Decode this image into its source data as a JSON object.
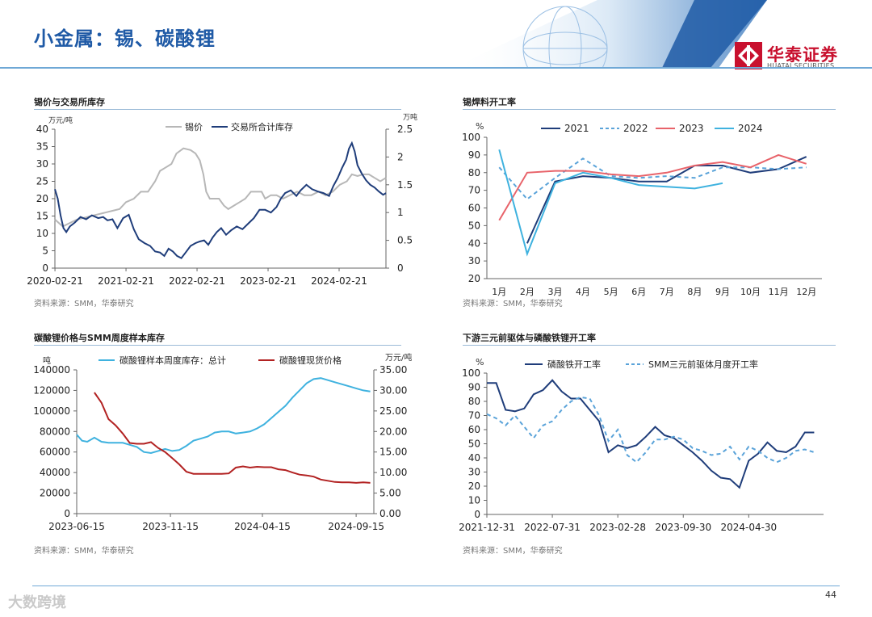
{
  "header": {
    "title": "小金属：锡、碳酸锂"
  },
  "logo": {
    "name_cn": "华泰证券",
    "name_en": "HUATAI SECURITIES"
  },
  "footer": {
    "page": "44",
    "watermark": "大数跨境"
  },
  "colors": {
    "brand_red": "#c8102e",
    "title_blue": "#1f5aa6"
  },
  "panels": [
    {
      "title": "锡价与交易所库存",
      "source": "资料来源：SMM，华泰研究"
    },
    {
      "title": "锡焊料开工率",
      "source": "资料来源：SMM，华泰研究"
    },
    {
      "title": "碳酸锂价格与SMM周度样本库存",
      "source": "资料来源：SMM，华泰研究"
    },
    {
      "title": "下游三元前驱体与磷酸铁锂开工率",
      "source": "资料来源：SMM，华泰研究"
    }
  ],
  "chart_data": [
    {
      "type": "line",
      "left_unit": "万元/吨",
      "right_unit": "万吨",
      "ylim": [
        0,
        40
      ],
      "y2lim": [
        0,
        2.5
      ],
      "yticks": [
        "0",
        "5",
        "10",
        "15",
        "20",
        "25",
        "30",
        "35",
        "40"
      ],
      "y2ticks": [
        "0",
        "0.5",
        "1",
        "1.5",
        "2",
        "2.5"
      ],
      "xticks": [
        "2020-02-21",
        "2021-02-21",
        "2022-02-21",
        "2023-02-21",
        "2024-02-21"
      ],
      "xrange": [
        2020.14,
        2024.8
      ],
      "legend_position": "top",
      "series": [
        {
          "name": "锡价",
          "axis": "left",
          "color": "#b7b7b7",
          "x": [
            2020.14,
            2020.25,
            2020.35,
            2020.45,
            2020.55,
            2020.65,
            2020.75,
            2020.85,
            2020.95,
            2021.05,
            2021.14,
            2021.25,
            2021.35,
            2021.45,
            2021.55,
            2021.62,
            2021.7,
            2021.78,
            2021.85,
            2021.95,
            2022.05,
            2022.12,
            2022.18,
            2022.23,
            2022.27,
            2022.32,
            2022.38,
            2022.45,
            2022.52,
            2022.58,
            2022.66,
            2022.74,
            2022.82,
            2022.9,
            2022.98,
            2023.05,
            2023.1,
            2023.18,
            2023.26,
            2023.35,
            2023.45,
            2023.55,
            2023.65,
            2023.75,
            2023.85,
            2023.95,
            2024.05,
            2024.15,
            2024.25,
            2024.32,
            2024.4,
            2024.48,
            2024.56,
            2024.64,
            2024.72,
            2024.8
          ],
          "y": [
            14,
            12,
            13,
            14,
            14.5,
            15,
            15.5,
            16,
            16.5,
            17,
            19,
            20,
            22,
            22,
            25,
            28,
            29,
            30,
            33,
            34.5,
            34,
            33,
            31,
            27,
            22,
            20,
            20,
            20,
            18,
            17,
            18,
            19,
            20,
            22,
            22,
            22,
            20,
            21,
            21,
            20,
            21,
            22,
            21,
            21,
            22,
            21,
            22,
            24,
            25,
            27,
            26.5,
            27,
            27,
            26,
            25,
            26
          ]
        },
        {
          "name": "交易所合计库存",
          "axis": "right",
          "color": "#1f3d7a",
          "x": [
            2020.14,
            2020.18,
            2020.22,
            2020.26,
            2020.3,
            2020.35,
            2020.42,
            2020.5,
            2020.58,
            2020.66,
            2020.75,
            2020.82,
            2020.88,
            2020.95,
            2021.02,
            2021.1,
            2021.18,
            2021.25,
            2021.32,
            2021.4,
            2021.48,
            2021.55,
            2021.62,
            2021.68,
            2021.74,
            2021.8,
            2021.86,
            2021.92,
            2021.98,
            2022.05,
            2022.12,
            2022.18,
            2022.24,
            2022.3,
            2022.36,
            2022.42,
            2022.48,
            2022.55,
            2022.62,
            2022.7,
            2022.78,
            2022.86,
            2022.94,
            2023.02,
            2023.1,
            2023.18,
            2023.26,
            2023.32,
            2023.38,
            2023.46,
            2023.54,
            2023.6,
            2023.68,
            2023.76,
            2023.84,
            2023.92,
            2024.0,
            2024.06,
            2024.12,
            2024.18,
            2024.24,
            2024.28,
            2024.32,
            2024.36,
            2024.4,
            2024.46,
            2024.52,
            2024.58,
            2024.64,
            2024.7,
            2024.76,
            2024.8
          ],
          "y": [
            1.42,
            1.25,
            0.95,
            0.72,
            0.65,
            0.75,
            0.82,
            0.92,
            0.88,
            0.95,
            0.9,
            0.92,
            0.86,
            0.88,
            0.72,
            0.9,
            0.96,
            0.7,
            0.52,
            0.45,
            0.4,
            0.3,
            0.28,
            0.22,
            0.35,
            0.3,
            0.22,
            0.18,
            0.28,
            0.4,
            0.45,
            0.48,
            0.5,
            0.42,
            0.55,
            0.65,
            0.72,
            0.6,
            0.68,
            0.75,
            0.7,
            0.8,
            0.9,
            1.05,
            1.05,
            1.0,
            1.1,
            1.25,
            1.35,
            1.4,
            1.3,
            1.4,
            1.5,
            1.42,
            1.38,
            1.35,
            1.3,
            1.48,
            1.62,
            1.8,
            1.95,
            2.15,
            2.25,
            2.1,
            1.85,
            1.7,
            1.58,
            1.5,
            1.45,
            1.38,
            1.32,
            1.35
          ]
        }
      ]
    },
    {
      "type": "line",
      "left_unit": "%",
      "ylim": [
        20,
        100
      ],
      "yticks": [
        "20",
        "30",
        "40",
        "50",
        "60",
        "70",
        "80",
        "90",
        "100"
      ],
      "categories": [
        "1月",
        "2月",
        "3月",
        "4月",
        "5月",
        "6月",
        "7月",
        "8月",
        "9月",
        "10月",
        "11月",
        "12月"
      ],
      "legend_position": "top",
      "series": [
        {
          "name": "2021",
          "color": "#1f3d7a",
          "dash": false,
          "values": [
            null,
            40,
            75,
            78,
            77,
            75,
            75,
            84,
            84,
            80,
            82,
            89
          ]
        },
        {
          "name": "2022",
          "color": "#5aa3d9",
          "dash": true,
          "values": [
            83,
            65,
            77,
            88,
            78,
            77,
            78,
            77,
            83,
            83,
            82,
            83
          ]
        },
        {
          "name": "2023",
          "color": "#e8636a",
          "dash": false,
          "values": [
            53,
            80,
            81,
            81,
            79,
            78,
            80,
            84,
            86,
            83,
            90,
            85
          ]
        },
        {
          "name": "2024",
          "color": "#3fb2df",
          "dash": false,
          "values": [
            93,
            34,
            74,
            80,
            77,
            73,
            72,
            71,
            74,
            null,
            null,
            null
          ]
        }
      ]
    },
    {
      "type": "line",
      "left_unit": "吨",
      "right_unit": "万元/吨",
      "ylim": [
        0,
        140000
      ],
      "y2lim": [
        0,
        35
      ],
      "yticks": [
        "0",
        "20000",
        "40000",
        "60000",
        "80000",
        "100000",
        "120000",
        "140000"
      ],
      "y2ticks": [
        "0.00",
        "5.00",
        "10.00",
        "15.00",
        "20.00",
        "25.00",
        "30.00",
        "35.00"
      ],
      "xticks": [
        "2023-06-15",
        "2023-11-15",
        "2024-04-15",
        "2024-09-15"
      ],
      "xrange": [
        0,
        16.8
      ],
      "legend_position": "top",
      "series": [
        {
          "name": "碳酸锂样本周度库存：总计",
          "axis": "left",
          "color": "#3fb2df",
          "x": [
            0,
            0.3,
            0.6,
            1.0,
            1.4,
            1.8,
            2.2,
            2.6,
            3.0,
            3.4,
            3.8,
            4.2,
            4.6,
            5.0,
            5.4,
            5.8,
            6.2,
            6.6,
            7.0,
            7.4,
            7.8,
            8.2,
            8.6,
            9.0,
            9.4,
            9.8,
            10.2,
            10.6,
            11.0,
            11.4,
            11.8,
            12.2,
            12.6,
            13.0,
            13.4,
            13.8,
            14.2,
            14.6,
            15.0,
            15.4,
            15.8,
            16.2,
            16.6
          ],
          "y": [
            77000,
            71000,
            70000,
            74000,
            70000,
            69000,
            69000,
            69000,
            67000,
            65000,
            60000,
            59000,
            61000,
            63000,
            61000,
            62000,
            66000,
            71000,
            73000,
            75000,
            79000,
            80000,
            80000,
            78000,
            79000,
            80000,
            83000,
            87000,
            93000,
            99000,
            105000,
            113000,
            120000,
            127000,
            131000,
            132000,
            130000,
            128000,
            126000,
            124000,
            122000,
            120000,
            119000
          ]
        },
        {
          "name": "碳酸锂现货价格",
          "axis": "right",
          "color": "#b22222",
          "x": [
            1.0,
            1.4,
            1.8,
            2.2,
            2.6,
            3.0,
            3.4,
            3.8,
            4.2,
            4.6,
            5.0,
            5.4,
            5.8,
            6.2,
            6.6,
            7.0,
            7.4,
            7.8,
            8.2,
            8.6,
            9.0,
            9.4,
            9.8,
            10.2,
            10.6,
            11.0,
            11.4,
            11.8,
            12.2,
            12.6,
            13.0,
            13.4,
            13.8,
            14.2,
            14.6,
            15.0,
            15.4,
            15.8,
            16.2,
            16.6
          ],
          "y": [
            29.5,
            27,
            23,
            21.5,
            19.5,
            17.2,
            17.0,
            17.0,
            17.4,
            16.0,
            15.0,
            13.5,
            12.0,
            10.2,
            9.7,
            9.7,
            9.7,
            9.7,
            9.7,
            9.8,
            11.2,
            11.5,
            11.2,
            11.4,
            11.3,
            11.3,
            10.8,
            10.6,
            10.0,
            9.5,
            9.3,
            9.0,
            8.3,
            8.0,
            7.7,
            7.6,
            7.6,
            7.5,
            7.6,
            7.5
          ]
        }
      ]
    },
    {
      "type": "line",
      "left_unit": "%",
      "ylim": [
        0,
        100
      ],
      "yticks": [
        "0",
        "10",
        "20",
        "30",
        "40",
        "50",
        "60",
        "70",
        "80",
        "90",
        "100"
      ],
      "xticks": [
        "2021-12-31",
        "2022-07-31",
        "2023-02-28",
        "2023-09-30",
        "2024-04-30"
      ],
      "xrange": [
        0,
        36
      ],
      "legend_position": "top",
      "series": [
        {
          "name": "磷酸铁开工率",
          "color": "#1f3d7a",
          "dash": false,
          "x": [
            0,
            1,
            2,
            3,
            4,
            5,
            6,
            7,
            8,
            9,
            10,
            11,
            12,
            13,
            14,
            15,
            16,
            17,
            18,
            19,
            20,
            21,
            22,
            23,
            24,
            25,
            26,
            27,
            28,
            29,
            30,
            31,
            32,
            33,
            34,
            35
          ],
          "y": [
            93,
            93,
            74,
            73,
            75,
            85,
            88,
            95,
            87,
            82,
            82,
            74,
            66,
            44,
            49,
            47,
            49,
            55,
            62,
            56,
            54,
            49,
            44,
            38,
            31,
            26,
            25,
            19,
            38,
            43,
            51,
            45,
            44,
            48,
            58,
            58
          ]
        },
        {
          "name": "SMM三元前驱体月度开工率",
          "color": "#5aa3d9",
          "dash": true,
          "x": [
            0,
            1,
            2,
            3,
            4,
            5,
            6,
            7,
            8,
            9,
            10,
            11,
            12,
            13,
            14,
            15,
            16,
            17,
            18,
            19,
            20,
            21,
            22,
            23,
            24,
            25,
            26,
            27,
            28,
            29,
            30,
            31,
            32,
            33,
            34,
            35
          ],
          "y": [
            71,
            68,
            63,
            70,
            62,
            54,
            63,
            66,
            74,
            80,
            83,
            82,
            70,
            52,
            60,
            42,
            37,
            44,
            53,
            53,
            55,
            53,
            47,
            45,
            42,
            43,
            48,
            39,
            48,
            45,
            40,
            37,
            40,
            45,
            46,
            44
          ]
        }
      ]
    }
  ]
}
